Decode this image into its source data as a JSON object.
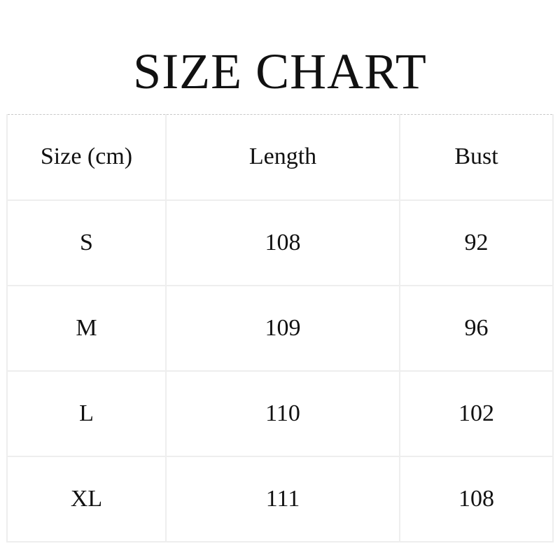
{
  "title": "SIZE CHART",
  "table": {
    "headers": [
      "Size (cm)",
      "Length",
      "Bust"
    ],
    "rows": [
      [
        "S",
        "108",
        "92"
      ],
      [
        "M",
        "109",
        "96"
      ],
      [
        "L",
        "110",
        "102"
      ],
      [
        "XL",
        "111",
        "108"
      ]
    ]
  }
}
